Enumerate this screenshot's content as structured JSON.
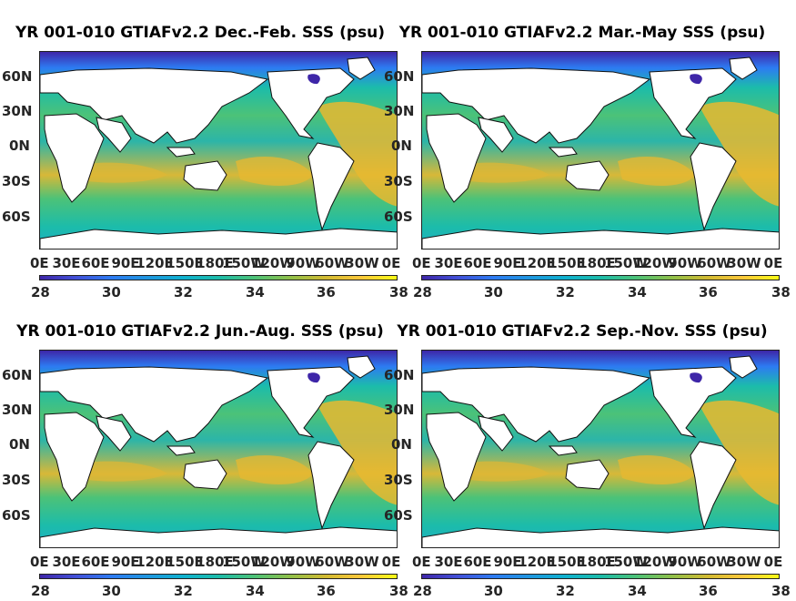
{
  "panels": [
    {
      "id": "djf",
      "title": "YR 001-010 GTIAFv2.2 Dec.-Feb. SSS (psu)"
    },
    {
      "id": "mam",
      "title": "YR 001-010 GTIAFv2.2 Mar.-May SSS (psu)"
    },
    {
      "id": "jja",
      "title": "YR 001-010 GTIAFv2.2 Jun.-Aug. SSS (psu)"
    },
    {
      "id": "son",
      "title": "YR 001-010 GTIAFv2.2 Sep.-Nov. SSS (psu)"
    }
  ],
  "lat_labels": [
    "60N",
    "30N",
    "0N",
    "30S",
    "60S"
  ],
  "lon_labels": [
    "0E",
    "30E",
    "60E",
    "90E",
    "120E",
    "150E",
    "180E",
    "150W",
    "120W",
    "90W",
    "60W",
    "30W",
    "0E"
  ],
  "colorbar_labels": [
    "28",
    "30",
    "32",
    "34",
    "36",
    "38"
  ],
  "colors": {
    "land": "#ffffff",
    "ocean_fresh": "#1f96e0",
    "ocean_mid": "#2cb5a8",
    "ocean_salty": "#e8b830",
    "arctic": "#3e26a8"
  }
}
